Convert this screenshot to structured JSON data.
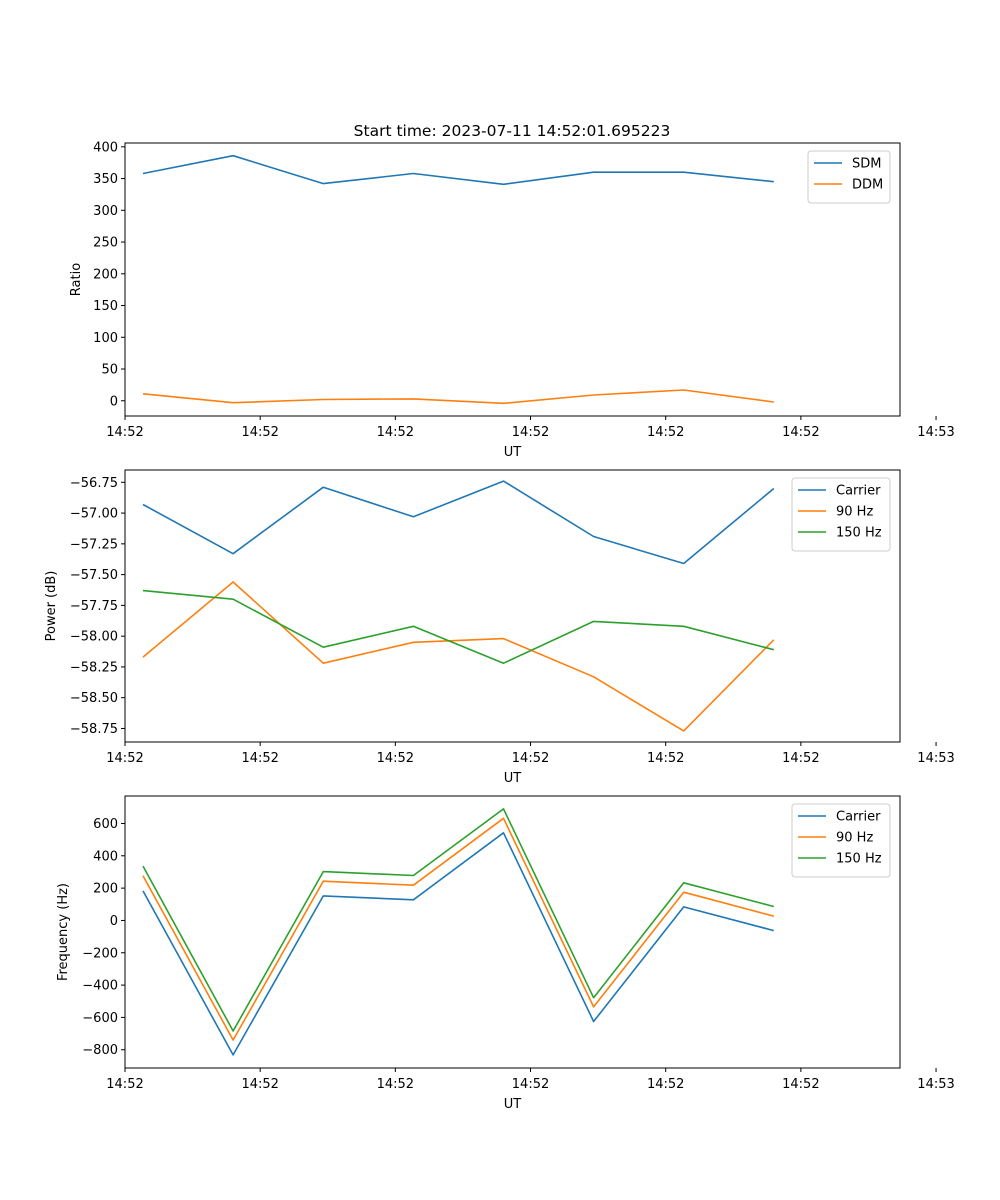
{
  "figure_title": "Start time: 2023-07-11 14:52:01.695223",
  "chart_data": [
    {
      "type": "line",
      "title": "Start time: 2023-07-11 14:52:01.695223",
      "xlabel": "UT",
      "ylabel": "Ratio",
      "x": [
        1,
        2,
        3,
        4,
        5,
        6,
        7,
        8
      ],
      "xlim": [
        0.8,
        9.4
      ],
      "x_ticks": [
        0.8,
        2.3,
        3.8,
        5.3,
        6.8,
        8.3,
        9.8
      ],
      "x_tick_labels": [
        "14:52",
        "14:52",
        "14:52",
        "14:52",
        "14:52",
        "14:52",
        "14:53"
      ],
      "ylim": [
        -24,
        406
      ],
      "y_ticks": [
        0,
        50,
        100,
        150,
        200,
        250,
        300,
        350,
        400
      ],
      "y_tick_labels": [
        "0",
        "50",
        "100",
        "150",
        "200",
        "250",
        "300",
        "350",
        "400"
      ],
      "legend": "upper-right",
      "series": [
        {
          "name": "SDM",
          "color": "#1f77b4",
          "values": [
            358,
            386,
            342,
            358,
            341,
            360,
            360,
            345
          ]
        },
        {
          "name": "DDM",
          "color": "#ff7f0e",
          "values": [
            11,
            -3,
            2,
            3,
            -4,
            9,
            17,
            -2
          ]
        }
      ]
    },
    {
      "type": "line",
      "title": "",
      "xlabel": "UT",
      "ylabel": "Power (dB)",
      "x": [
        1,
        2,
        3,
        4,
        5,
        6,
        7,
        8
      ],
      "xlim": [
        0.8,
        9.4
      ],
      "x_ticks": [
        0.8,
        2.3,
        3.8,
        5.3,
        6.8,
        8.3,
        9.8
      ],
      "x_tick_labels": [
        "14:52",
        "14:52",
        "14:52",
        "14:52",
        "14:52",
        "14:52",
        "14:53"
      ],
      "ylim": [
        -58.86,
        -56.65
      ],
      "y_ticks": [
        -58.75,
        -58.5,
        -58.25,
        -58.0,
        -57.75,
        -57.5,
        -57.25,
        -57.0,
        -56.75
      ],
      "y_tick_labels": [
        "−58.75",
        "−58.50",
        "−58.25",
        "−58.00",
        "−57.75",
        "−57.50",
        "−57.25",
        "−57.00",
        "−56.75"
      ],
      "legend": "upper-right",
      "series": [
        {
          "name": "Carrier",
          "color": "#1f77b4",
          "values": [
            -56.93,
            -57.33,
            -56.79,
            -57.03,
            -56.74,
            -57.19,
            -57.41,
            -56.8
          ]
        },
        {
          "name": "90 Hz",
          "color": "#ff7f0e",
          "values": [
            -58.17,
            -57.56,
            -58.22,
            -58.05,
            -58.02,
            -58.33,
            -58.77,
            -58.03
          ]
        },
        {
          "name": "150 Hz",
          "color": "#2ca02c",
          "values": [
            -57.63,
            -57.7,
            -58.09,
            -57.92,
            -58.22,
            -57.88,
            -57.92,
            -58.11
          ]
        }
      ]
    },
    {
      "type": "line",
      "title": "",
      "xlabel": "UT",
      "ylabel": "Frequency (Hz)",
      "x": [
        1,
        2,
        3,
        4,
        5,
        6,
        7,
        8
      ],
      "xlim": [
        0.8,
        9.4
      ],
      "x_ticks": [
        0.8,
        2.3,
        3.8,
        5.3,
        6.8,
        8.3,
        9.8
      ],
      "x_tick_labels": [
        "14:52",
        "14:52",
        "14:52",
        "14:52",
        "14:52",
        "14:52",
        "14:53"
      ],
      "ylim": [
        -913,
        770
      ],
      "y_ticks": [
        -800,
        -600,
        -400,
        -200,
        0,
        200,
        400,
        600
      ],
      "y_tick_labels": [
        "−800",
        "−600",
        "−400",
        "−200",
        "0",
        "200",
        "400",
        "600"
      ],
      "legend": "upper-right",
      "series": [
        {
          "name": "Carrier",
          "color": "#1f77b4",
          "values": [
            183,
            -832,
            152,
            128,
            542,
            -625,
            84,
            -63
          ]
        },
        {
          "name": "90 Hz",
          "color": "#ff7f0e",
          "values": [
            276,
            -740,
            243,
            218,
            632,
            -535,
            175,
            26
          ]
        },
        {
          "name": "150 Hz",
          "color": "#2ca02c",
          "values": [
            336,
            -684,
            302,
            278,
            690,
            -478,
            233,
            86
          ]
        }
      ]
    }
  ]
}
